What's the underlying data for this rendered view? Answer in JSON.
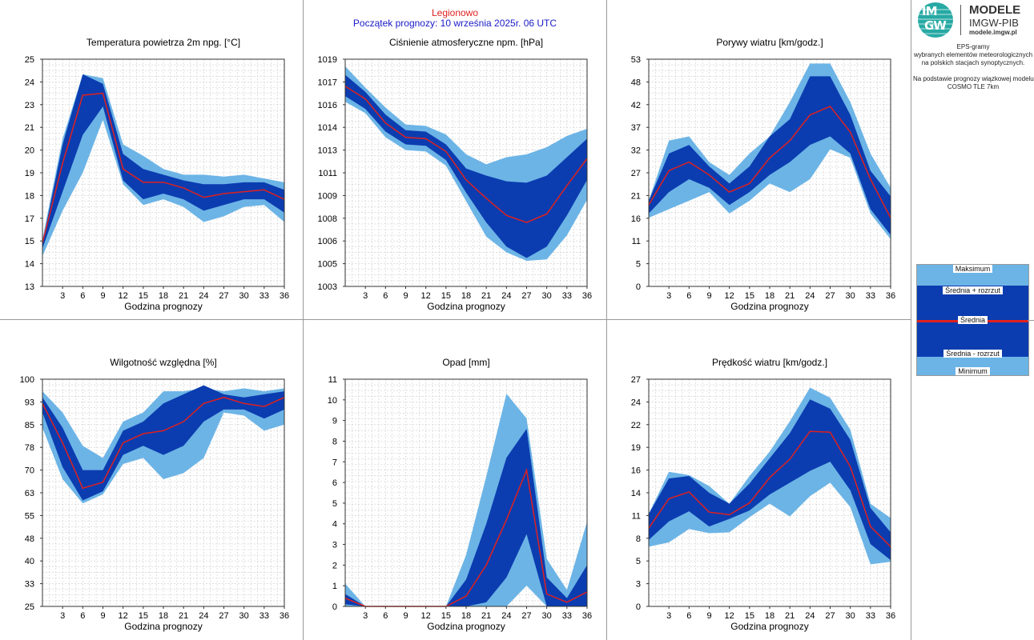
{
  "header": {
    "station": "Legionowo",
    "forecast_start": "Początek prognozy: 10 września 2025r. 06 UTC"
  },
  "logo": {
    "mark_top": "IM",
    "mark_bottom": "GW",
    "title": "MODELE",
    "subtitle": "IMGW-PIB",
    "site": "modele.imgw.pl"
  },
  "description": {
    "lines": [
      "EPS-gramy",
      "wybranych elementów meteorologicznych",
      "na polskich stacjach  synoptycznych.",
      "",
      "Na podstawie prognozy wiązkowej modelu",
      "COSMO TLE 7km"
    ]
  },
  "legend": {
    "max": "Maksimum",
    "mean_plus": "Średnia + rozrzut",
    "mean": "Średnia",
    "mean_minus": "Średnia - rozrzut",
    "min": "Minimum"
  },
  "colors": {
    "light_band": "#6cb4e6",
    "dark_band": "#0b3db0",
    "mean_line": "#e0201f",
    "grid": "#cccccc",
    "title_red": "#e0201f",
    "title_blue": "#1a1ac8"
  },
  "chart_data": [
    {
      "type": "area",
      "title": "Temperatura powietrza 2m npg. [°C]",
      "xlabel": "Godzina prognozy",
      "x": [
        0,
        3,
        6,
        9,
        12,
        15,
        18,
        21,
        24,
        27,
        30,
        33,
        36
      ],
      "xticks": [
        3,
        6,
        9,
        12,
        15,
        18,
        21,
        24,
        27,
        30,
        33,
        36
      ],
      "ylim": [
        13,
        25
      ],
      "yticks": [
        13,
        14,
        15,
        17,
        18,
        19,
        20,
        21,
        23,
        24,
        25
      ],
      "series": [
        {
          "name": "Maksimum",
          "values": [
            15.5,
            20.8,
            24.2,
            24.0,
            20.5,
            19.9,
            19.2,
            18.9,
            18.9,
            18.8,
            18.9,
            18.7,
            18.5
          ]
        },
        {
          "name": "Średnia + rozrzut",
          "values": [
            15.3,
            20.5,
            24.2,
            23.7,
            20.0,
            19.2,
            18.9,
            18.6,
            18.4,
            18.4,
            18.5,
            18.5,
            18.1
          ]
        },
        {
          "name": "Średnia",
          "values": [
            15.3,
            19.5,
            23.1,
            23.2,
            19.2,
            18.5,
            18.5,
            18.2,
            17.7,
            17.9,
            18.0,
            18.1,
            17.6
          ]
        },
        {
          "name": "Średnia - rozrzut",
          "values": [
            15.0,
            18.0,
            21.0,
            22.5,
            18.6,
            17.6,
            17.9,
            17.6,
            17.0,
            17.3,
            17.6,
            17.6,
            16.9
          ]
        },
        {
          "name": "Minimum",
          "values": [
            14.6,
            17.0,
            19.0,
            21.8,
            18.4,
            17.3,
            17.6,
            17.2,
            16.4,
            16.7,
            17.2,
            17.3,
            16.4
          ]
        }
      ]
    },
    {
      "type": "area",
      "title": "Ciśnienie atmosferyczne npm. [hPa]",
      "xlabel": "Godzina prognozy",
      "x": [
        0,
        3,
        6,
        9,
        12,
        15,
        18,
        21,
        24,
        27,
        30,
        33,
        36
      ],
      "xticks": [
        3,
        6,
        9,
        12,
        15,
        18,
        21,
        24,
        27,
        30,
        33,
        36
      ],
      "ylim": [
        1003,
        1019
      ],
      "yticks": [
        1003,
        1005,
        1006,
        1008,
        1009,
        1011,
        1013,
        1014,
        1016,
        1017,
        1019
      ],
      "series": [
        {
          "name": "Maksimum",
          "values": [
            1018.5,
            1017.0,
            1015.6,
            1014.4,
            1014.3,
            1013.7,
            1012.3,
            1011.6,
            1012.1,
            1012.3,
            1012.8,
            1013.6,
            1014.1
          ]
        },
        {
          "name": "Średnia + rozrzut",
          "values": [
            1017.9,
            1016.7,
            1015.1,
            1014.0,
            1013.9,
            1013.0,
            1011.3,
            1010.8,
            1010.4,
            1010.3,
            1010.8,
            1012.1,
            1013.4
          ]
        },
        {
          "name": "Średnia",
          "values": [
            1017.1,
            1016.2,
            1014.5,
            1013.5,
            1013.4,
            1012.5,
            1010.5,
            1009.2,
            1008.0,
            1007.5,
            1008.1,
            1010.1,
            1012.0
          ]
        },
        {
          "name": "Średnia - rozrzut",
          "values": [
            1016.4,
            1015.5,
            1013.9,
            1013.0,
            1012.9,
            1011.9,
            1009.6,
            1007.5,
            1005.8,
            1005.0,
            1005.8,
            1008.0,
            1010.5
          ]
        },
        {
          "name": "Minimum",
          "values": [
            1016.0,
            1015.2,
            1013.5,
            1012.6,
            1012.5,
            1011.5,
            1009.0,
            1006.5,
            1005.4,
            1004.8,
            1004.9,
            1006.6,
            1009.1
          ]
        }
      ]
    },
    {
      "type": "area",
      "title": "Porywy wiatru [km/godz.]",
      "xlabel": "Godzina prognozy",
      "x": [
        0,
        3,
        6,
        9,
        12,
        15,
        18,
        21,
        24,
        27,
        30,
        33,
        36
      ],
      "xticks": [
        3,
        6,
        9,
        12,
        15,
        18,
        21,
        24,
        27,
        30,
        33,
        36
      ],
      "ylim": [
        0,
        53
      ],
      "yticks": [
        0,
        5,
        11,
        16,
        21,
        27,
        32,
        37,
        42,
        48,
        53
      ],
      "series": [
        {
          "name": "Maksimum",
          "values": [
            20,
            34,
            35,
            29,
            26,
            31,
            35,
            43,
            52,
            52,
            43,
            31,
            23
          ]
        },
        {
          "name": "Średnia + rozrzut",
          "values": [
            20,
            31,
            33,
            28,
            24,
            28,
            35,
            39,
            49,
            49,
            40,
            27,
            21
          ]
        },
        {
          "name": "Średnia",
          "values": [
            19,
            27,
            29,
            26,
            22,
            24,
            30,
            34,
            40,
            42,
            36,
            25,
            16
          ]
        },
        {
          "name": "Średnia - rozrzut",
          "values": [
            17,
            22,
            25,
            23,
            19,
            22,
            26,
            29,
            33,
            35,
            31,
            18,
            12
          ]
        },
        {
          "name": "Minimum",
          "values": [
            16,
            18,
            20,
            22,
            17,
            20,
            24,
            22,
            25,
            32,
            30,
            17,
            11
          ]
        }
      ]
    },
    {
      "type": "area",
      "title": "Wilgotność względna [%]",
      "xlabel": "Godzina prognozy",
      "x": [
        0,
        3,
        6,
        9,
        12,
        15,
        18,
        21,
        24,
        27,
        30,
        33,
        36
      ],
      "xticks": [
        3,
        6,
        9,
        12,
        15,
        18,
        21,
        24,
        27,
        30,
        33,
        36
      ],
      "ylim": [
        25,
        100
      ],
      "yticks": [
        25,
        33,
        40,
        48,
        55,
        63,
        70,
        78,
        85,
        93,
        100
      ],
      "series": [
        {
          "name": "Maksimum",
          "values": [
            96,
            89,
            78,
            74,
            86,
            89,
            96,
            96,
            97,
            96,
            97,
            96,
            97
          ]
        },
        {
          "name": "Średnia + rozrzut",
          "values": [
            94,
            84,
            70,
            70,
            83,
            86,
            92,
            95,
            98,
            95,
            94,
            95,
            96
          ]
        },
        {
          "name": "Średnia",
          "values": [
            92,
            79,
            64,
            66,
            79,
            82,
            83,
            86,
            92,
            94,
            92,
            91,
            94
          ]
        },
        {
          "name": "Średnia - rozrzut",
          "values": [
            89,
            71,
            60,
            63,
            75,
            78,
            75,
            78,
            86,
            90,
            90,
            87,
            90
          ]
        },
        {
          "name": "Minimum",
          "values": [
            84,
            67,
            59,
            62,
            72,
            74,
            67,
            69,
            74,
            89,
            88,
            83,
            85
          ]
        }
      ]
    },
    {
      "type": "area",
      "title": "Opad [mm]",
      "xlabel": "Godzina prognozy",
      "x": [
        0,
        3,
        6,
        9,
        12,
        15,
        18,
        21,
        24,
        27,
        30,
        33,
        36
      ],
      "xticks": [
        3,
        6,
        9,
        12,
        15,
        18,
        21,
        24,
        27,
        30,
        33,
        36
      ],
      "ylim": [
        0,
        11
      ],
      "yticks": [
        0,
        1,
        2,
        3,
        4,
        5,
        6,
        7,
        8,
        9,
        10,
        11
      ],
      "series": [
        {
          "name": "Maksimum",
          "values": [
            1.1,
            0,
            0,
            0,
            0,
            0,
            2.5,
            6.3,
            10.3,
            9.1,
            2.3,
            0.8,
            4.1
          ]
        },
        {
          "name": "Średnia + rozrzut",
          "values": [
            0.6,
            0,
            0,
            0,
            0,
            0,
            1.3,
            4.0,
            7.2,
            8.6,
            1.4,
            0.4,
            2.0
          ]
        },
        {
          "name": "Średnia",
          "values": [
            0.4,
            0,
            0,
            0,
            0,
            0,
            0.5,
            2.0,
            4.2,
            6.6,
            0.6,
            0.2,
            0.7
          ]
        },
        {
          "name": "Średnia - rozrzut",
          "values": [
            0.1,
            0,
            0,
            0,
            0,
            0,
            0,
            0.2,
            1.4,
            3.5,
            0,
            0,
            0
          ]
        },
        {
          "name": "Minimum",
          "values": [
            0,
            0,
            0,
            0,
            0,
            0,
            0,
            0,
            0,
            1.0,
            0,
            0,
            0
          ]
        }
      ]
    },
    {
      "type": "area",
      "title": "Prędkość wiatru [km/godz.]",
      "xlabel": "Godzina prognozy",
      "x": [
        0,
        3,
        6,
        9,
        12,
        15,
        18,
        21,
        24,
        27,
        30,
        33,
        36
      ],
      "xticks": [
        3,
        6,
        9,
        12,
        15,
        18,
        21,
        24,
        27,
        30,
        33,
        36
      ],
      "ylim": [
        0,
        27
      ],
      "yticks": [
        0,
        3,
        5,
        8,
        11,
        14,
        16,
        19,
        22,
        24,
        27
      ],
      "series": [
        {
          "name": "Maksimum",
          "values": [
            11,
            16,
            15.6,
            14.3,
            12.2,
            15.5,
            18.4,
            22,
            26,
            24.8,
            21,
            12.2,
            10.5
          ]
        },
        {
          "name": "Średnia + rozrzut",
          "values": [
            11,
            15.2,
            15.5,
            13.5,
            12.2,
            14.6,
            17.6,
            20.6,
            24.6,
            23.5,
            19.8,
            11.7,
            8.8
          ]
        },
        {
          "name": "Średnia",
          "values": [
            9.3,
            12.8,
            13.6,
            11.2,
            10.9,
            12.3,
            15.3,
            17.5,
            20.8,
            20.7,
            16.6,
            9.5,
            7.1
          ]
        },
        {
          "name": "Średnia - rozrzut",
          "values": [
            7.9,
            10.1,
            11.3,
            9.5,
            10.4,
            11.4,
            13.3,
            14.7,
            16.1,
            17.2,
            13.8,
            7.4,
            5.5
          ]
        },
        {
          "name": "Minimum",
          "values": [
            7.1,
            7.6,
            9.2,
            8.7,
            8.8,
            10.6,
            12.2,
            10.7,
            13.1,
            14.7,
            11.8,
            5.0,
            5.3
          ]
        }
      ]
    }
  ]
}
